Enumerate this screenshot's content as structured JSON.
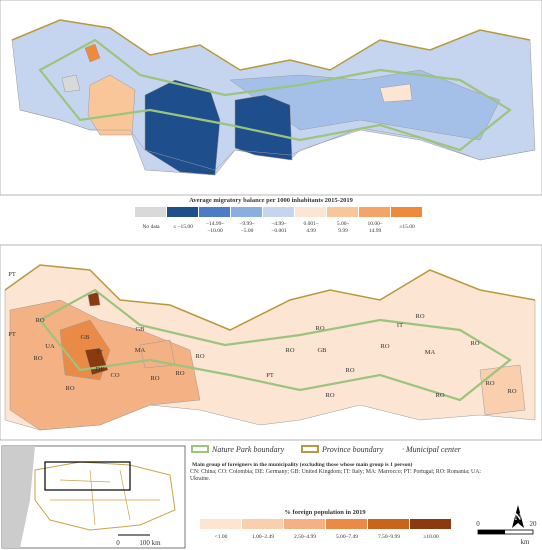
{
  "top_map": {
    "legend_title": "Average migratory balance per 1000 inhabitants 2015-2019",
    "legend_items": [
      {
        "label": "No data",
        "color": "#d9d9d9"
      },
      {
        "label": "≤ −15.00",
        "color": "#1f4e8c"
      },
      {
        "label": "−14.99– −10.00",
        "color": "#4d7cc7"
      },
      {
        "label": "−9.99– −5.00",
        "color": "#8aaee0"
      },
      {
        "label": "−4.99– −0.001",
        "color": "#c5d5ef"
      },
      {
        "label": "0.001– 4.99",
        "color": "#fde5d3"
      },
      {
        "label": "5.00– 9.99",
        "color": "#f9c69a"
      },
      {
        "label": "10.00– 14.99",
        "color": "#f4a466"
      },
      {
        "label": "≥15.00",
        "color": "#ef8a3c"
      }
    ]
  },
  "bottom_map": {
    "labels": [
      "PT",
      "PT",
      "RO",
      "UA",
      "GB",
      "RO",
      "RO",
      "IT",
      "GB",
      "DE",
      "CO",
      "MA",
      "RO",
      "RO",
      "RO",
      "PT",
      "RO",
      "RO",
      "GB",
      "RO",
      "IT",
      "RO",
      "MA",
      "RO",
      "RO",
      "RO",
      "RO",
      "RO",
      "RO"
    ],
    "legend_lines": [
      "Nature Park boundary",
      "Province boundary",
      "· Municipal center"
    ],
    "note_title": "Main group of foreigners in the municipality (excluding those whose main group is 1 person)",
    "note_codes": "CN: China; CO: Colombia; DE: Germany; GB: United Kingdom; IT: Italy; MA: Marrocco; PT: Portugal; RO: Romania; UA: Ukraine.",
    "legend_title": "% foreign population in 2019",
    "legend_items": [
      {
        "label": "<1.00",
        "color": "#fde5d3"
      },
      {
        "label": "1.00–2.49",
        "color": "#f9cfae"
      },
      {
        "label": "2.50–4.99",
        "color": "#f4b183"
      },
      {
        "label": "5.00–7.49",
        "color": "#e98b47"
      },
      {
        "label": "7.50–9.99",
        "color": "#c8651d"
      },
      {
        "label": "≥10.00",
        "color": "#8b3a0f"
      }
    ]
  },
  "inset": {
    "scale": [
      "0",
      "100 km"
    ]
  },
  "scale_bar": {
    "labels": [
      "0",
      "20",
      "km"
    ],
    "north": "N"
  }
}
